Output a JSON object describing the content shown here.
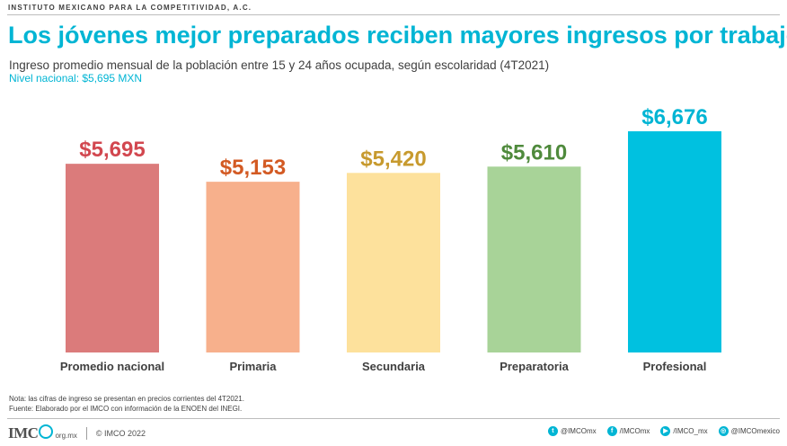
{
  "header": {
    "org": "INSTITUTO MEXICANO PARA LA COMPETITIVIDAD, A.C.",
    "title": "Los jóvenes mejor preparados reciben mayores ingresos por trabajo",
    "subtitle": "Ingreso promedio mensual de la población entre 15 y 24 años ocupada, según escolaridad (4T2021)",
    "subnote": "Nivel nacional: $5,695 MXN"
  },
  "chart_data": {
    "type": "bar",
    "categories": [
      "Promedio nacional",
      "Primaria",
      "Secundaria",
      "Preparatoria",
      "Profesional"
    ],
    "values": [
      5695,
      5153,
      5420,
      5610,
      6676
    ],
    "value_labels": [
      "$5,695",
      "$5,153",
      "$5,420",
      "$5,610",
      "$6,676"
    ],
    "colors": [
      "#db7b7b",
      "#f7b08c",
      "#fde19c",
      "#a8d398",
      "#00c1e0"
    ],
    "label_colors": [
      "#d2474f",
      "#d35a23",
      "#c79a2e",
      "#4f8a3c",
      "#00b5d4"
    ],
    "ylim": [
      0,
      6676
    ],
    "grid": false,
    "legend": "none"
  },
  "notes": {
    "line1": "Nota: las cifras de ingreso se presentan en precios corrientes del 4T2021.",
    "line2": "Fuente: Elaborado por el IMCO con información de la ENOEN del INEGI."
  },
  "footer": {
    "logo_text": "IMC",
    "logo_domain": "org.mx",
    "copyright": "© IMCO 2022",
    "social": [
      {
        "icon": "twitter-icon",
        "glyph": "t",
        "label": "@IMCOmx"
      },
      {
        "icon": "facebook-icon",
        "glyph": "f",
        "label": "/IMCOmx"
      },
      {
        "icon": "youtube-icon",
        "glyph": "▶",
        "label": "/IMCO_mx"
      },
      {
        "icon": "instagram-icon",
        "glyph": "◎",
        "label": "@IMCOmexico"
      }
    ]
  }
}
